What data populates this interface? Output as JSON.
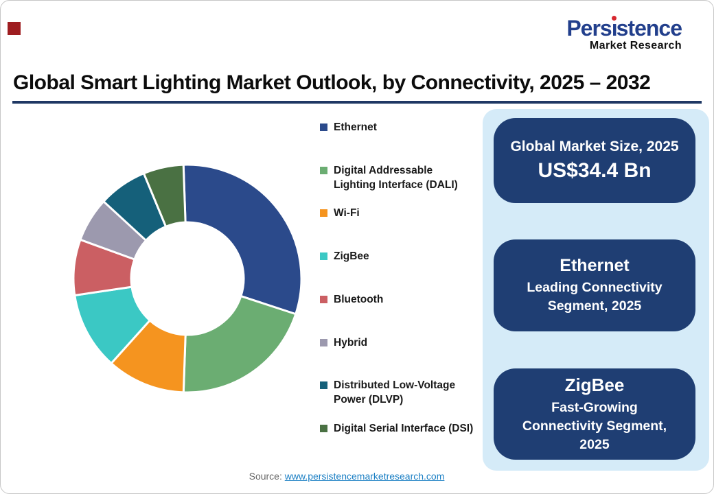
{
  "accent": {
    "corner_square_color": "#9E1D20"
  },
  "logo": {
    "brand": "Persistence",
    "sub": "Market Research",
    "brand_color": "#223F8C",
    "dot_color": "#D7282F"
  },
  "header": {
    "title": "Global Smart Lighting Market Outlook, by Connectivity, 2025 – 2032",
    "underline_color": "#1F3864"
  },
  "chart_data": {
    "type": "pie",
    "donut": true,
    "title": "Global Smart Lighting Market Outlook, by Connectivity, 2025 – 2032",
    "categories": [
      "Ethernet",
      "Digital Addressable Lighting Interface (DALI)",
      "Wi-Fi",
      "ZigBee",
      "Bluetooth",
      "Hybrid",
      "Distributed Low-Voltage Power (DLVP)",
      "Digital Serial Interface (DSI)"
    ],
    "values": [
      30.6,
      20.5,
      11.1,
      11.0,
      7.9,
      6.3,
      6.9,
      5.7
    ],
    "value_note": "percent shares estimated from arc angles; no data labels shown in figure",
    "colors": [
      "#2B4A8B",
      "#6BAD72",
      "#F5941F",
      "#3BC8C4",
      "#CB5F63",
      "#9C99AE",
      "#15607A",
      "#4A7143"
    ],
    "start_angle_deg": -2,
    "legend_position": "right"
  },
  "panel": {
    "bg": "#D5EBF8",
    "box_bg": "#1F3E73",
    "boxes": [
      {
        "title": "Global Market Size, 2025",
        "value": "US$34.4 Bn"
      },
      {
        "title": "Ethernet",
        "subtitle": "Leading Connectivity Segment, 2025"
      },
      {
        "title": "ZigBee",
        "subtitle": "Fast-Growing Connectivity Segment, 2025"
      }
    ]
  },
  "source": {
    "label": "Source: ",
    "link": "www.persistencemarketresearch.com",
    "link_color": "#1B7FC4"
  }
}
